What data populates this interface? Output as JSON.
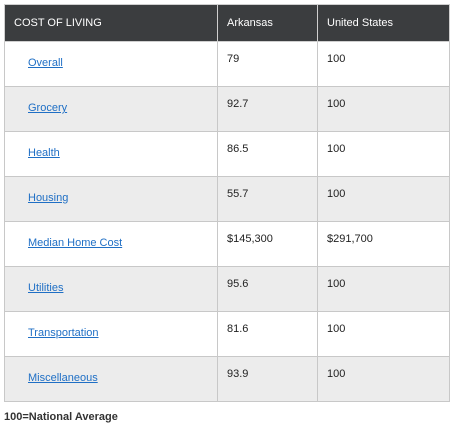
{
  "table": {
    "headers": [
      "COST OF LIVING",
      "Arkansas",
      "United States"
    ],
    "rows": [
      {
        "category": "Overall",
        "arkansas": "79",
        "us": "100"
      },
      {
        "category": "Grocery",
        "arkansas": "92.7",
        "us": "100"
      },
      {
        "category": "Health",
        "arkansas": "86.5",
        "us": "100"
      },
      {
        "category": "Housing",
        "arkansas": "55.7",
        "us": "100"
      },
      {
        "category": "Median Home Cost",
        "arkansas": "$145,300",
        "us": "$291,700"
      },
      {
        "category": "Utilities",
        "arkansas": "95.6",
        "us": "100"
      },
      {
        "category": "Transportation",
        "arkansas": "81.6",
        "us": "100"
      },
      {
        "category": "Miscellaneous",
        "arkansas": "93.9",
        "us": "100"
      }
    ]
  },
  "footnote": "100=National Average",
  "colors": {
    "header_bg": "#3b3d3f",
    "link": "#1f6fc5",
    "alt_row": "#ececec"
  }
}
